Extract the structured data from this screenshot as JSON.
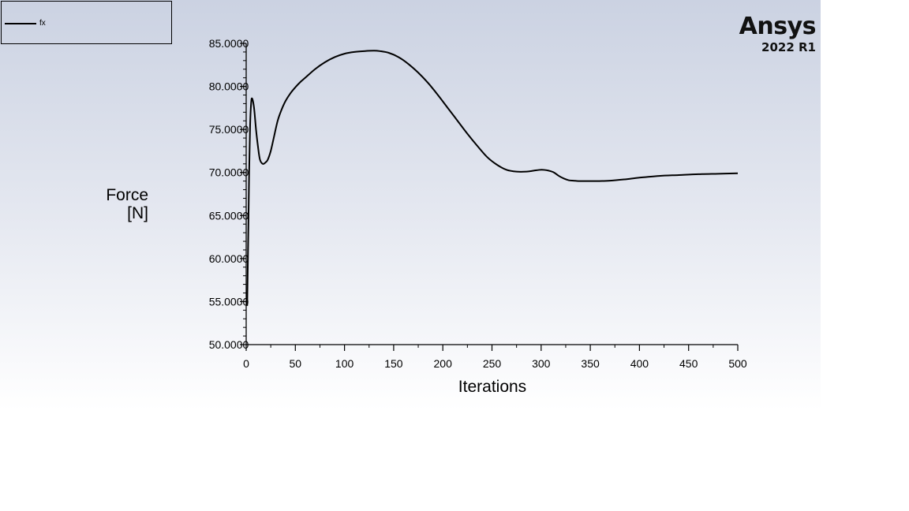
{
  "legend": {
    "label": "fx"
  },
  "brand": {
    "name": "Ansys",
    "version": "2022 R1"
  },
  "colors": {
    "line": "#000000",
    "axis": "#000000"
  },
  "chart_data": {
    "type": "line",
    "title": "",
    "xlabel": "Iterations",
    "ylabel_lines": [
      "Force",
      "[N]"
    ],
    "xlim": [
      0,
      500
    ],
    "ylim": [
      50,
      85
    ],
    "xticks": [
      0,
      50,
      100,
      150,
      200,
      250,
      300,
      350,
      400,
      450,
      500
    ],
    "yticks": [
      50,
      55,
      60,
      65,
      70,
      75,
      80,
      85
    ],
    "ytick_labels": [
      "50.0000",
      "55.0000",
      "60.0000",
      "65.0000",
      "70.0000",
      "75.0000",
      "80.0000",
      "85.0000"
    ],
    "grid": false,
    "legend_position": "top-left",
    "series": [
      {
        "name": "fx",
        "x": [
          1,
          2,
          3,
          4,
          5,
          6,
          8,
          10,
          12,
          14,
          17,
          20,
          22,
          25,
          28,
          32,
          36,
          40,
          45,
          50,
          55,
          60,
          70,
          80,
          90,
          100,
          110,
          120,
          130,
          136,
          145,
          155,
          165,
          175,
          185,
          195,
          205,
          215,
          225,
          235,
          245,
          255,
          265,
          275,
          285,
          292,
          298,
          303,
          308,
          313,
          318,
          323,
          328,
          333,
          338,
          345,
          355,
          370,
          385,
          400,
          420,
          440,
          460,
          480,
          500
        ],
        "y": [
          54.5,
          62.0,
          70.0,
          75.5,
          78.0,
          78.6,
          77.5,
          75.0,
          73.0,
          71.5,
          71.0,
          71.2,
          71.5,
          72.5,
          74.0,
          76.0,
          77.3,
          78.3,
          79.2,
          79.9,
          80.5,
          81.0,
          82.0,
          82.8,
          83.4,
          83.8,
          84.0,
          84.1,
          84.15,
          84.1,
          83.9,
          83.4,
          82.6,
          81.6,
          80.4,
          79.0,
          77.5,
          76.0,
          74.5,
          73.1,
          71.8,
          70.9,
          70.3,
          70.1,
          70.1,
          70.2,
          70.3,
          70.3,
          70.2,
          70.0,
          69.6,
          69.3,
          69.1,
          69.05,
          69.0,
          69.0,
          69.0,
          69.05,
          69.2,
          69.4,
          69.6,
          69.7,
          69.8,
          69.85,
          69.9
        ]
      }
    ]
  }
}
